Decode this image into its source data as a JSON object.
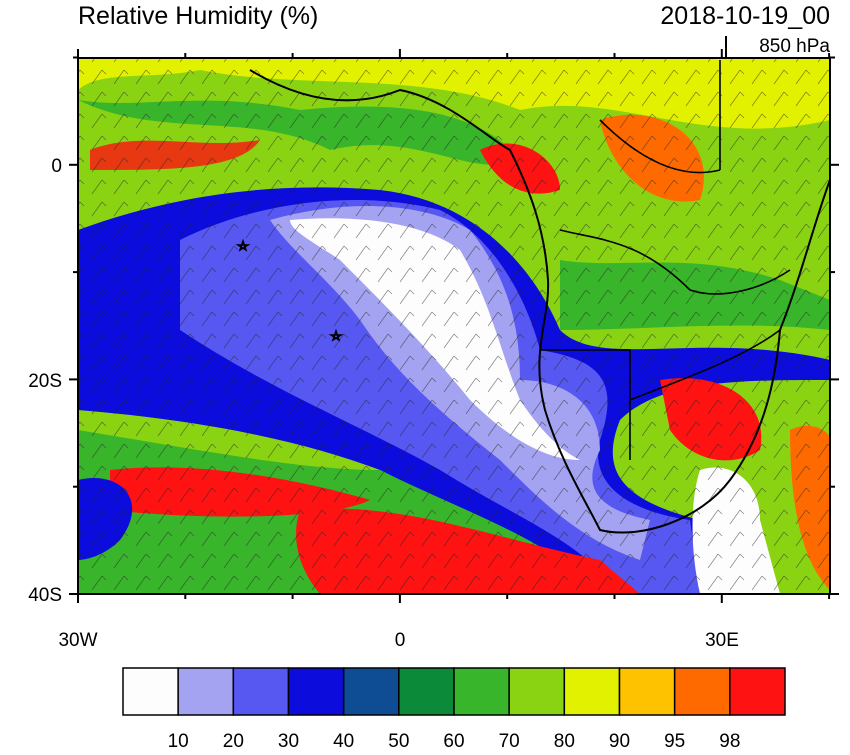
{
  "header": {
    "title": "Relative Humidity (%)",
    "date": "2018-10-19_00",
    "level": "850 hPa"
  },
  "map": {
    "y_labels": [
      "0",
      "20S",
      "40S"
    ],
    "x_labels": [
      "30W",
      "0",
      "30E"
    ]
  },
  "colorbar": {
    "colors": [
      "#fdfdfd",
      "#a3a3f2",
      "#5757f2",
      "#0c0cdc",
      "#0e4d94",
      "#0b8a3a",
      "#38b52a",
      "#8ad313",
      "#e2f100",
      "#ffc200",
      "#ff6a00",
      "#fe1212"
    ],
    "labels": [
      10,
      20,
      30,
      40,
      50,
      60,
      70,
      80,
      90,
      95,
      98
    ]
  }
}
